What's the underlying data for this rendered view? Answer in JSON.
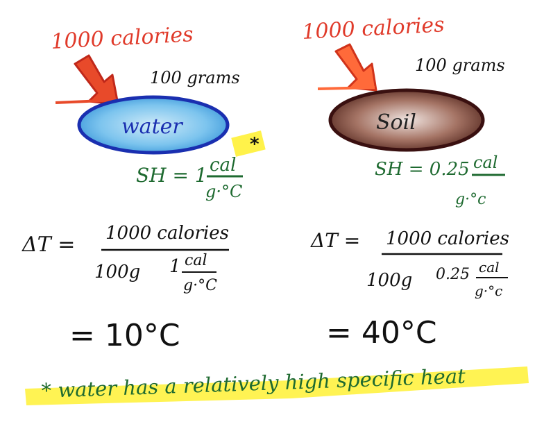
{
  "left": {
    "energy": "1000 calories",
    "mass": "100 grams",
    "substance": "water",
    "sh_label": "SH = 1",
    "sh_unit_num": "cal",
    "sh_unit_den": "g·°C",
    "star": "*",
    "dt_label": "ΔT =",
    "dt_num": "1000 calories",
    "dt_den_mass": "100g",
    "dt_den_sh": "1",
    "dt_den_unit_num": "cal",
    "dt_den_unit_den": "g·°C",
    "result": "= 10°C"
  },
  "right": {
    "energy": "1000 calories",
    "mass": "100 grams",
    "substance": "Soil",
    "sh_label": "SH = 0.25",
    "sh_unit_num": "cal",
    "sh_unit_den": "g·°c",
    "dt_label": "ΔT =",
    "dt_num": "1000 calories",
    "dt_den_mass": "100g",
    "dt_den_sh": "0.25",
    "dt_den_unit_num": "cal",
    "dt_den_unit_den": "g·°c",
    "result": "= 40°C"
  },
  "footnote": "* water has a relatively high specific heat",
  "colors": {
    "red": "#e03a2a",
    "water_fill": "#3da0e0",
    "water_stroke": "#1a2fb0",
    "soil_fill": "#6b2e1f",
    "soil_stroke": "#3a1010",
    "green_ink": "#1e6a30",
    "highlight": "#fff24a"
  }
}
